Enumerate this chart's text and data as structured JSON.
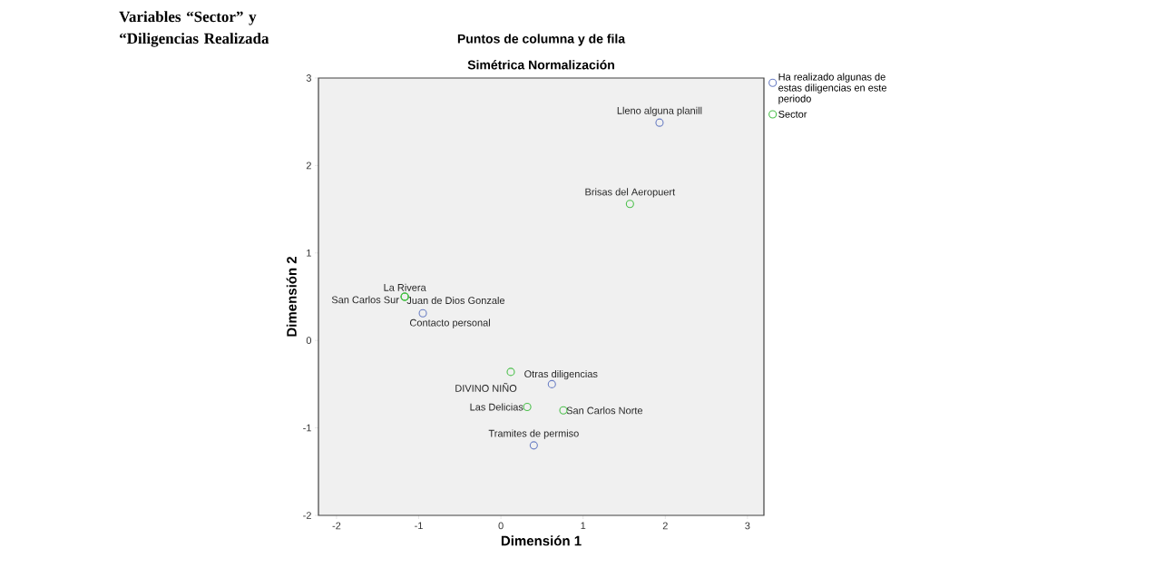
{
  "chart_data": {
    "type": "scatter",
    "title": "Puntos de columna y de fila",
    "subtitle": "Simétrica Normalización",
    "xlabel": "Dimensión 1",
    "ylabel": "Dimensión 2",
    "series": [
      {
        "name": "Ha realizado algunas de estas diligencias en este periodo",
        "color": "#6b7fc4",
        "x": [
          1.93,
          -0.95,
          0.62,
          0.4
        ],
        "values": [
          2.49,
          0.31,
          -0.5,
          -1.2
        ]
      },
      {
        "name": "Sector",
        "color": "#4cc04c",
        "x": [
          1.57,
          -1.17,
          -1.17,
          -1.17,
          0.12,
          0.32,
          0.76
        ],
        "values": [
          1.56,
          0.5,
          0.5,
          0.5,
          -0.36,
          -0.76,
          -0.8
        ]
      }
    ],
    "annotations": [
      {
        "text": "Lleno alguna planill",
        "x": 1.93,
        "y": 2.49
      },
      {
        "text": "Brisas del Aeropuert",
        "x": 1.57,
        "y": 1.56
      },
      {
        "text": "La Rivera",
        "x": -1.17,
        "y": 0.5
      },
      {
        "text": "Juan de Dios Gonzale",
        "x": -1.17,
        "y": 0.5
      },
      {
        "text": "San Carlos Sur",
        "x": -1.17,
        "y": 0.5
      },
      {
        "text": "Contacto personal",
        "x": -0.95,
        "y": 0.31
      },
      {
        "text": "DIVINO NIÑO",
        "x": 0.12,
        "y": -0.36
      },
      {
        "text": "Otras diligencias",
        "x": 0.62,
        "y": -0.5
      },
      {
        "text": "Las Delicias",
        "x": 0.32,
        "y": -0.76
      },
      {
        "text": "San Carlos Norte",
        "x": 0.76,
        "y": -0.8
      },
      {
        "text": "Tramites de permiso",
        "x": 0.4,
        "y": -1.2
      },
      "Variables “Sector” y “Diligencias Realizada"
    ],
    "xlim": [
      -2.22,
      3.2
    ],
    "ylim": [
      -2,
      3
    ],
    "xticks": [
      -2,
      -1,
      0,
      1,
      2,
      3
    ],
    "yticks": [
      -2,
      -1,
      0,
      1,
      2,
      3
    ],
    "grid": false,
    "legend": "top right",
    "marker": "circle"
  }
}
